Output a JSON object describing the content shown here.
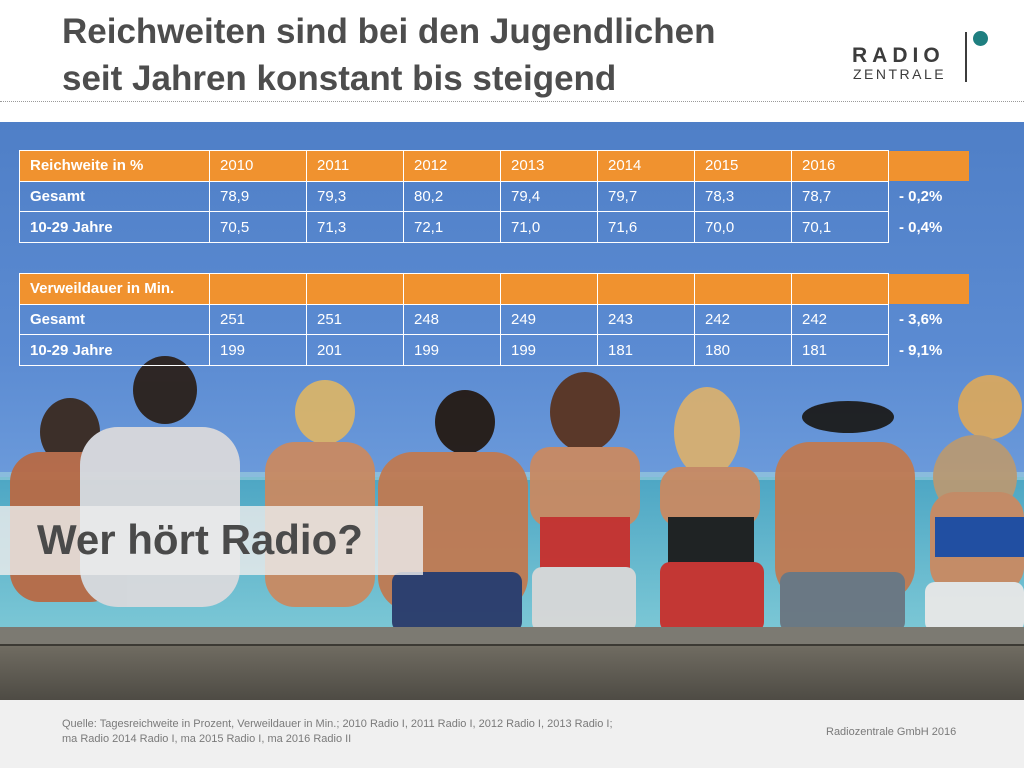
{
  "title": {
    "line1": "Reichweiten sind bei den Jugendlichen",
    "line2": "seit Jahren konstant bis steigend"
  },
  "logo": {
    "top": "RADIO",
    "bottom": "ZENTRALE",
    "accent_color": "#1f7f80"
  },
  "reach_table": {
    "header": [
      "Reichweite in %",
      "2010",
      "2011",
      "2012",
      "2013",
      "2014",
      "2015",
      "2016"
    ],
    "rows": [
      {
        "label": "Gesamt",
        "values": [
          "78,9",
          "79,3",
          "80,2",
          "79,4",
          "79,7",
          "78,3",
          "78,7"
        ],
        "change": "- 0,2%"
      },
      {
        "label": "10-29 Jahre",
        "values": [
          "70,5",
          "71,3",
          "72,1",
          "71,0",
          "71,6",
          "70,0",
          "70,1"
        ],
        "change": "- 0,4%"
      }
    ]
  },
  "duration_table": {
    "header": [
      "Verweildauer in Min.",
      "",
      "",
      "",
      "",
      "",
      "",
      ""
    ],
    "rows": [
      {
        "label": "Gesamt",
        "values": [
          "251",
          "251",
          "248",
          "249",
          "243",
          "242",
          "242"
        ],
        "change": "- 3,6%"
      },
      {
        "label": "10-29 Jahre",
        "values": [
          "199",
          "201",
          "199",
          "199",
          "181",
          "180",
          "181"
        ],
        "change": "- 9,1%"
      }
    ]
  },
  "header_color": "#f0922f",
  "question": "Wer hört Radio?",
  "footer": {
    "source_line1": "Quelle: Tagesreichweite in Prozent, Verweildauer in Min.;  2010 Radio I, 2011 Radio I, 2012 Radio I, 2013 Radio I;",
    "source_line2": "ma Radio 2014 Radio I, ma 2015 Radio I, ma 2016  Radio II",
    "copyright": "Radiozentrale GmbH 2016"
  }
}
